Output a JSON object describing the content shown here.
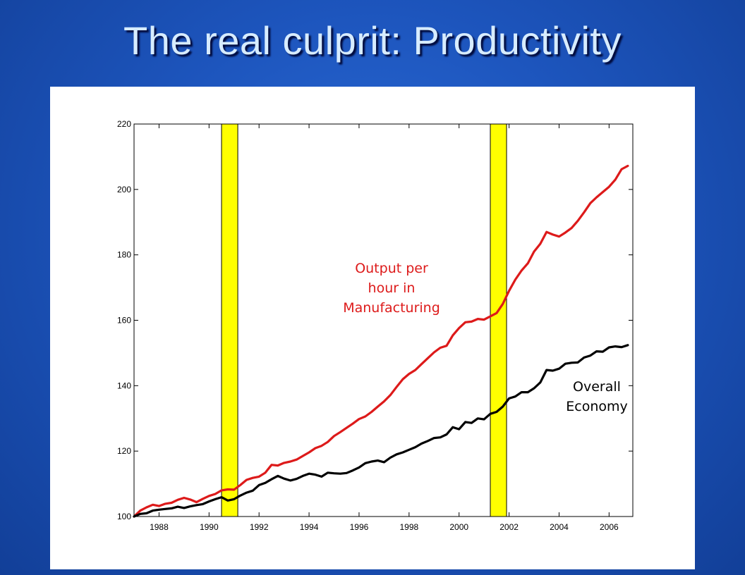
{
  "slide": {
    "title": "The real culprit: Productivity"
  },
  "colors": {
    "manufacturing": "#dd1a1a",
    "overall": "#000000",
    "recession_band": "#ffff00"
  },
  "chart_data": {
    "type": "line",
    "title": "",
    "xlabel": "",
    "ylabel": "",
    "xlim": [
      1987.0,
      2006.95
    ],
    "ylim": [
      100,
      220
    ],
    "grid": false,
    "xticks": [
      1988,
      1990,
      1992,
      1994,
      1996,
      1998,
      2000,
      2002,
      2004,
      2006
    ],
    "yticks": [
      100,
      120,
      140,
      160,
      180,
      200,
      220
    ],
    "recession_bands": [
      [
        1990.5,
        1991.15
      ],
      [
        2001.25,
        2001.9
      ]
    ],
    "annotations": [
      {
        "text": "Output per\nhour in\nManufacturing",
        "series": "Output per hour in Manufacturing"
      },
      {
        "text": "Overall\nEconomy",
        "series": "Overall Economy"
      }
    ],
    "series": [
      {
        "name": "Output per hour in Manufacturing",
        "color": "#dd1a1a",
        "points": [
          [
            1987.0,
            100.0
          ],
          [
            1987.25,
            101.8
          ],
          [
            1987.5,
            102.8
          ],
          [
            1987.75,
            103.6
          ],
          [
            1988.0,
            103.2
          ],
          [
            1988.25,
            103.9
          ],
          [
            1988.5,
            104.2
          ],
          [
            1988.75,
            105.1
          ],
          [
            1989.0,
            105.7
          ],
          [
            1989.25,
            105.2
          ],
          [
            1989.5,
            104.4
          ],
          [
            1989.75,
            105.4
          ],
          [
            1990.0,
            106.3
          ],
          [
            1990.25,
            106.9
          ],
          [
            1990.5,
            108.0
          ],
          [
            1990.75,
            108.3
          ],
          [
            1991.0,
            108.2
          ],
          [
            1991.25,
            109.6
          ],
          [
            1991.5,
            111.2
          ],
          [
            1991.75,
            111.8
          ],
          [
            1992.0,
            112.2
          ],
          [
            1992.25,
            113.4
          ],
          [
            1992.5,
            115.8
          ],
          [
            1992.75,
            115.6
          ],
          [
            1993.0,
            116.4
          ],
          [
            1993.25,
            116.8
          ],
          [
            1993.5,
            117.4
          ],
          [
            1993.75,
            118.5
          ],
          [
            1994.0,
            119.6
          ],
          [
            1994.25,
            120.9
          ],
          [
            1994.5,
            121.6
          ],
          [
            1994.75,
            122.8
          ],
          [
            1995.0,
            124.6
          ],
          [
            1995.25,
            125.8
          ],
          [
            1995.5,
            127.1
          ],
          [
            1995.75,
            128.4
          ],
          [
            1996.0,
            129.8
          ],
          [
            1996.25,
            130.6
          ],
          [
            1996.5,
            132.0
          ],
          [
            1996.75,
            133.6
          ],
          [
            1997.0,
            135.2
          ],
          [
            1997.25,
            137.1
          ],
          [
            1997.5,
            139.6
          ],
          [
            1997.75,
            142.0
          ],
          [
            1998.0,
            143.6
          ],
          [
            1998.25,
            144.8
          ],
          [
            1998.5,
            146.6
          ],
          [
            1998.75,
            148.4
          ],
          [
            1999.0,
            150.2
          ],
          [
            1999.25,
            151.6
          ],
          [
            1999.5,
            152.2
          ],
          [
            1999.75,
            155.4
          ],
          [
            2000.0,
            157.6
          ],
          [
            2000.25,
            159.4
          ],
          [
            2000.5,
            159.6
          ],
          [
            2000.75,
            160.4
          ],
          [
            2001.0,
            160.2
          ],
          [
            2001.25,
            161.2
          ],
          [
            2001.5,
            162.2
          ],
          [
            2001.75,
            165.0
          ],
          [
            2002.0,
            169.0
          ],
          [
            2002.25,
            172.4
          ],
          [
            2002.5,
            175.2
          ],
          [
            2002.75,
            177.4
          ],
          [
            2003.0,
            181.0
          ],
          [
            2003.25,
            183.4
          ],
          [
            2003.5,
            187.0
          ],
          [
            2003.75,
            186.2
          ],
          [
            2004.0,
            185.6
          ],
          [
            2004.25,
            186.8
          ],
          [
            2004.5,
            188.2
          ],
          [
            2004.75,
            190.4
          ],
          [
            2005.0,
            193.0
          ],
          [
            2005.25,
            195.8
          ],
          [
            2005.5,
            197.6
          ],
          [
            2005.75,
            199.2
          ],
          [
            2006.0,
            200.8
          ],
          [
            2006.25,
            203.0
          ],
          [
            2006.5,
            206.2
          ],
          [
            2006.75,
            207.2
          ]
        ]
      },
      {
        "name": "Overall Economy",
        "color": "#000000",
        "points": [
          [
            1987.0,
            100.0
          ],
          [
            1987.25,
            100.8
          ],
          [
            1987.5,
            101.0
          ],
          [
            1987.75,
            101.8
          ],
          [
            1988.0,
            102.1
          ],
          [
            1988.25,
            102.3
          ],
          [
            1988.5,
            102.5
          ],
          [
            1988.75,
            103.0
          ],
          [
            1989.0,
            102.6
          ],
          [
            1989.25,
            103.1
          ],
          [
            1989.5,
            103.5
          ],
          [
            1989.75,
            103.8
          ],
          [
            1990.0,
            104.6
          ],
          [
            1990.25,
            105.3
          ],
          [
            1990.5,
            105.9
          ],
          [
            1990.75,
            104.9
          ],
          [
            1991.0,
            105.3
          ],
          [
            1991.25,
            106.4
          ],
          [
            1991.5,
            107.3
          ],
          [
            1991.75,
            107.9
          ],
          [
            1992.0,
            109.6
          ],
          [
            1992.25,
            110.3
          ],
          [
            1992.5,
            111.4
          ],
          [
            1992.75,
            112.4
          ],
          [
            1993.0,
            111.6
          ],
          [
            1993.25,
            111.0
          ],
          [
            1993.5,
            111.5
          ],
          [
            1993.75,
            112.4
          ],
          [
            1994.0,
            113.1
          ],
          [
            1994.25,
            112.8
          ],
          [
            1994.5,
            112.2
          ],
          [
            1994.75,
            113.4
          ],
          [
            1995.0,
            113.2
          ],
          [
            1995.25,
            113.1
          ],
          [
            1995.5,
            113.3
          ],
          [
            1995.75,
            114.1
          ],
          [
            1996.0,
            115.0
          ],
          [
            1996.25,
            116.3
          ],
          [
            1996.5,
            116.8
          ],
          [
            1996.75,
            117.1
          ],
          [
            1997.0,
            116.6
          ],
          [
            1997.25,
            118.0
          ],
          [
            1997.5,
            119.0
          ],
          [
            1997.75,
            119.6
          ],
          [
            1998.0,
            120.4
          ],
          [
            1998.25,
            121.2
          ],
          [
            1998.5,
            122.3
          ],
          [
            1998.75,
            123.1
          ],
          [
            1999.0,
            124.0
          ],
          [
            1999.25,
            124.2
          ],
          [
            1999.5,
            125.1
          ],
          [
            1999.75,
            127.3
          ],
          [
            2000.0,
            126.7
          ],
          [
            2000.25,
            128.9
          ],
          [
            2000.5,
            128.6
          ],
          [
            2000.75,
            130.0
          ],
          [
            2001.0,
            129.7
          ],
          [
            2001.25,
            131.4
          ],
          [
            2001.5,
            132.0
          ],
          [
            2001.75,
            133.6
          ],
          [
            2002.0,
            136.1
          ],
          [
            2002.25,
            136.7
          ],
          [
            2002.5,
            138.0
          ],
          [
            2002.75,
            138.0
          ],
          [
            2003.0,
            139.2
          ],
          [
            2003.25,
            141.0
          ],
          [
            2003.5,
            144.8
          ],
          [
            2003.75,
            144.6
          ],
          [
            2004.0,
            145.2
          ],
          [
            2004.25,
            146.7
          ],
          [
            2004.5,
            147.0
          ],
          [
            2004.75,
            147.1
          ],
          [
            2005.0,
            148.6
          ],
          [
            2005.25,
            149.2
          ],
          [
            2005.5,
            150.5
          ],
          [
            2005.75,
            150.4
          ],
          [
            2006.0,
            151.7
          ],
          [
            2006.25,
            152.0
          ],
          [
            2006.5,
            151.8
          ],
          [
            2006.75,
            152.4
          ]
        ]
      }
    ]
  }
}
